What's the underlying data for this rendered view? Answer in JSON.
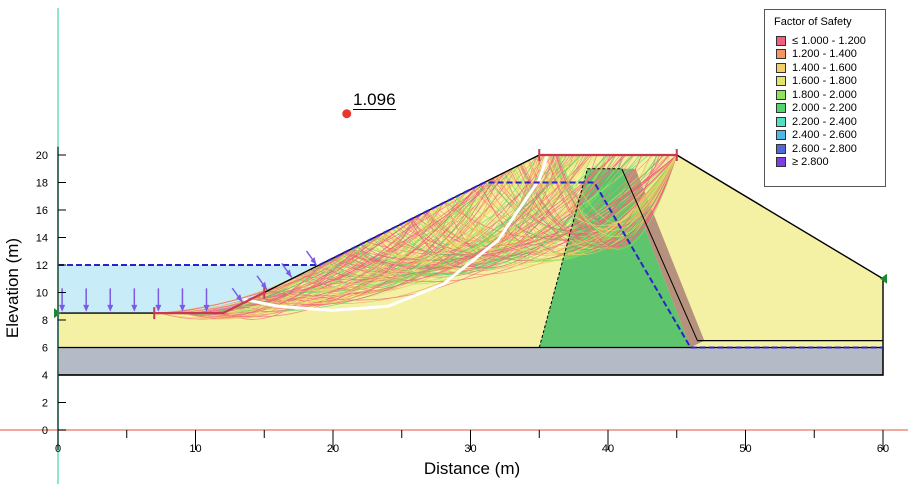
{
  "chart": {
    "xlabel": "Distance (m)",
    "ylabel": "Elevation (m)",
    "x_ticks": [
      "0",
      "10",
      "20",
      "30",
      "40",
      "50",
      "60"
    ],
    "y_ticks": [
      "0",
      "2",
      "4",
      "6",
      "8",
      "10",
      "12",
      "14",
      "16",
      "18",
      "20"
    ],
    "xlim": [
      0,
      61.5
    ],
    "ylim": [
      0,
      21.5
    ]
  },
  "critical_surface": {
    "factor_of_safety": "1.096",
    "center": [
      21.0,
      23.0
    ]
  },
  "legend": {
    "title": "Factor of Safety",
    "entries": [
      {
        "label": "≤ 1.000 - 1.200",
        "color": "#f0607e"
      },
      {
        "label": "1.200 - 1.400",
        "color": "#f4975e"
      },
      {
        "label": "1.400 - 1.600",
        "color": "#f5cd6a"
      },
      {
        "label": "1.600 - 1.800",
        "color": "#dfe56a"
      },
      {
        "label": "1.800 - 2.000",
        "color": "#8ee45a"
      },
      {
        "label": "2.000 - 2.200",
        "color": "#4fd46e"
      },
      {
        "label": "2.200 - 2.400",
        "color": "#4fe0c2"
      },
      {
        "label": "2.400 - 2.600",
        "color": "#4fb8e6"
      },
      {
        "label": "2.600 - 2.800",
        "color": "#4f68d6"
      },
      {
        "label": "≥ 2.800",
        "color": "#7e3fe0"
      }
    ]
  },
  "colors": {
    "embankment": "#f4f1a4",
    "core": "#5ec46e",
    "filter": "#b5917e",
    "bedrock": "#b4bac6",
    "water": "#c8ecf8",
    "water_line": "#2b22c8",
    "load_arrow": "#7a5ae6",
    "critical_arc": "#ffffff",
    "boundary_marker": "#1a8a2a"
  },
  "chart_data": {
    "type": "slope-stability",
    "geometry": {
      "ground": [
        [
          0,
          8.5
        ],
        [
          7,
          8.5
        ],
        [
          12,
          8.5
        ],
        [
          35,
          20
        ],
        [
          45,
          20
        ],
        [
          60,
          11
        ],
        [
          60,
          6
        ],
        [
          0,
          6
        ]
      ],
      "bedrock": [
        [
          0,
          6
        ],
        [
          60,
          6
        ],
        [
          60,
          4
        ],
        [
          0,
          4
        ]
      ],
      "core": [
        [
          38.5,
          19
        ],
        [
          41,
          19
        ],
        [
          46,
          6
        ],
        [
          35,
          6
        ]
      ],
      "filter": [
        [
          41,
          19
        ],
        [
          42,
          19
        ],
        [
          47,
          6.5
        ],
        [
          46,
          6
        ]
      ],
      "toe_berm": [
        [
          46.5,
          6.5
        ],
        [
          60,
          6.5
        ],
        [
          60,
          6
        ],
        [
          46.5,
          6
        ]
      ]
    },
    "water_table": [
      [
        0,
        12
      ],
      [
        19,
        12
      ],
      [
        31,
        18
      ],
      [
        39,
        18
      ],
      [
        46,
        6
      ],
      [
        60,
        6
      ]
    ],
    "reservoir_level": 12,
    "critical_slip_surface": [
      [
        13.5,
        9.5
      ],
      [
        16,
        9.0
      ],
      [
        20,
        8.7
      ],
      [
        24,
        9.0
      ],
      [
        28,
        10.6
      ],
      [
        32,
        13.8
      ],
      [
        35,
        18.2
      ],
      [
        35.6,
        20
      ]
    ],
    "fos_min": 1.096
  }
}
